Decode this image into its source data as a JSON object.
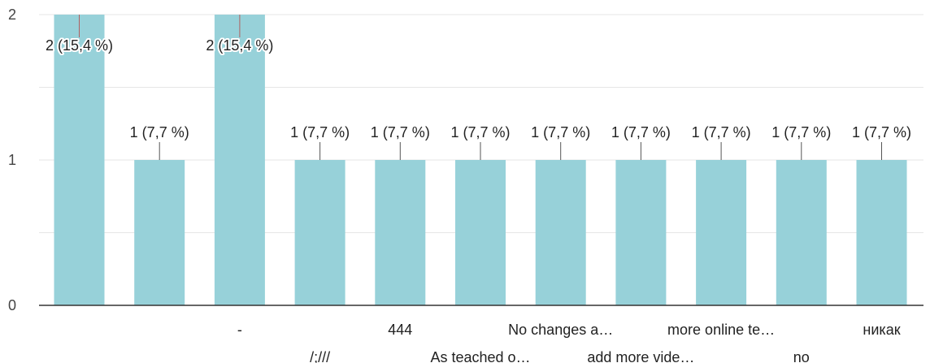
{
  "chart_data": {
    "type": "bar",
    "categories": [
      "",
      "",
      "-",
      "/;///",
      "444",
      "As teached o…",
      "No changes a…",
      "add more vide…",
      "more online te…",
      "no",
      "никак"
    ],
    "values": [
      2,
      1,
      2,
      1,
      1,
      1,
      1,
      1,
      1,
      1,
      1
    ],
    "data_labels": [
      "2 (15,4 %)",
      "1 (7,7 %)",
      "2 (15,4 %)",
      "1 (7,7 %)",
      "1 (7,7 %)",
      "1 (7,7 %)",
      "1 (7,7 %)",
      "1 (7,7 %)",
      "1 (7,7 %)",
      "1 (7,7 %)",
      "1 (7,7 %)"
    ],
    "ylim": [
      0,
      2
    ],
    "yticks": [
      "0",
      "1",
      "2"
    ],
    "grid": true,
    "colors": {
      "bar": "#97d1d9",
      "grid": "#e6e6e6",
      "axis": "#333333",
      "leader": "#555555",
      "leader_on_bar": "#b06060"
    }
  }
}
